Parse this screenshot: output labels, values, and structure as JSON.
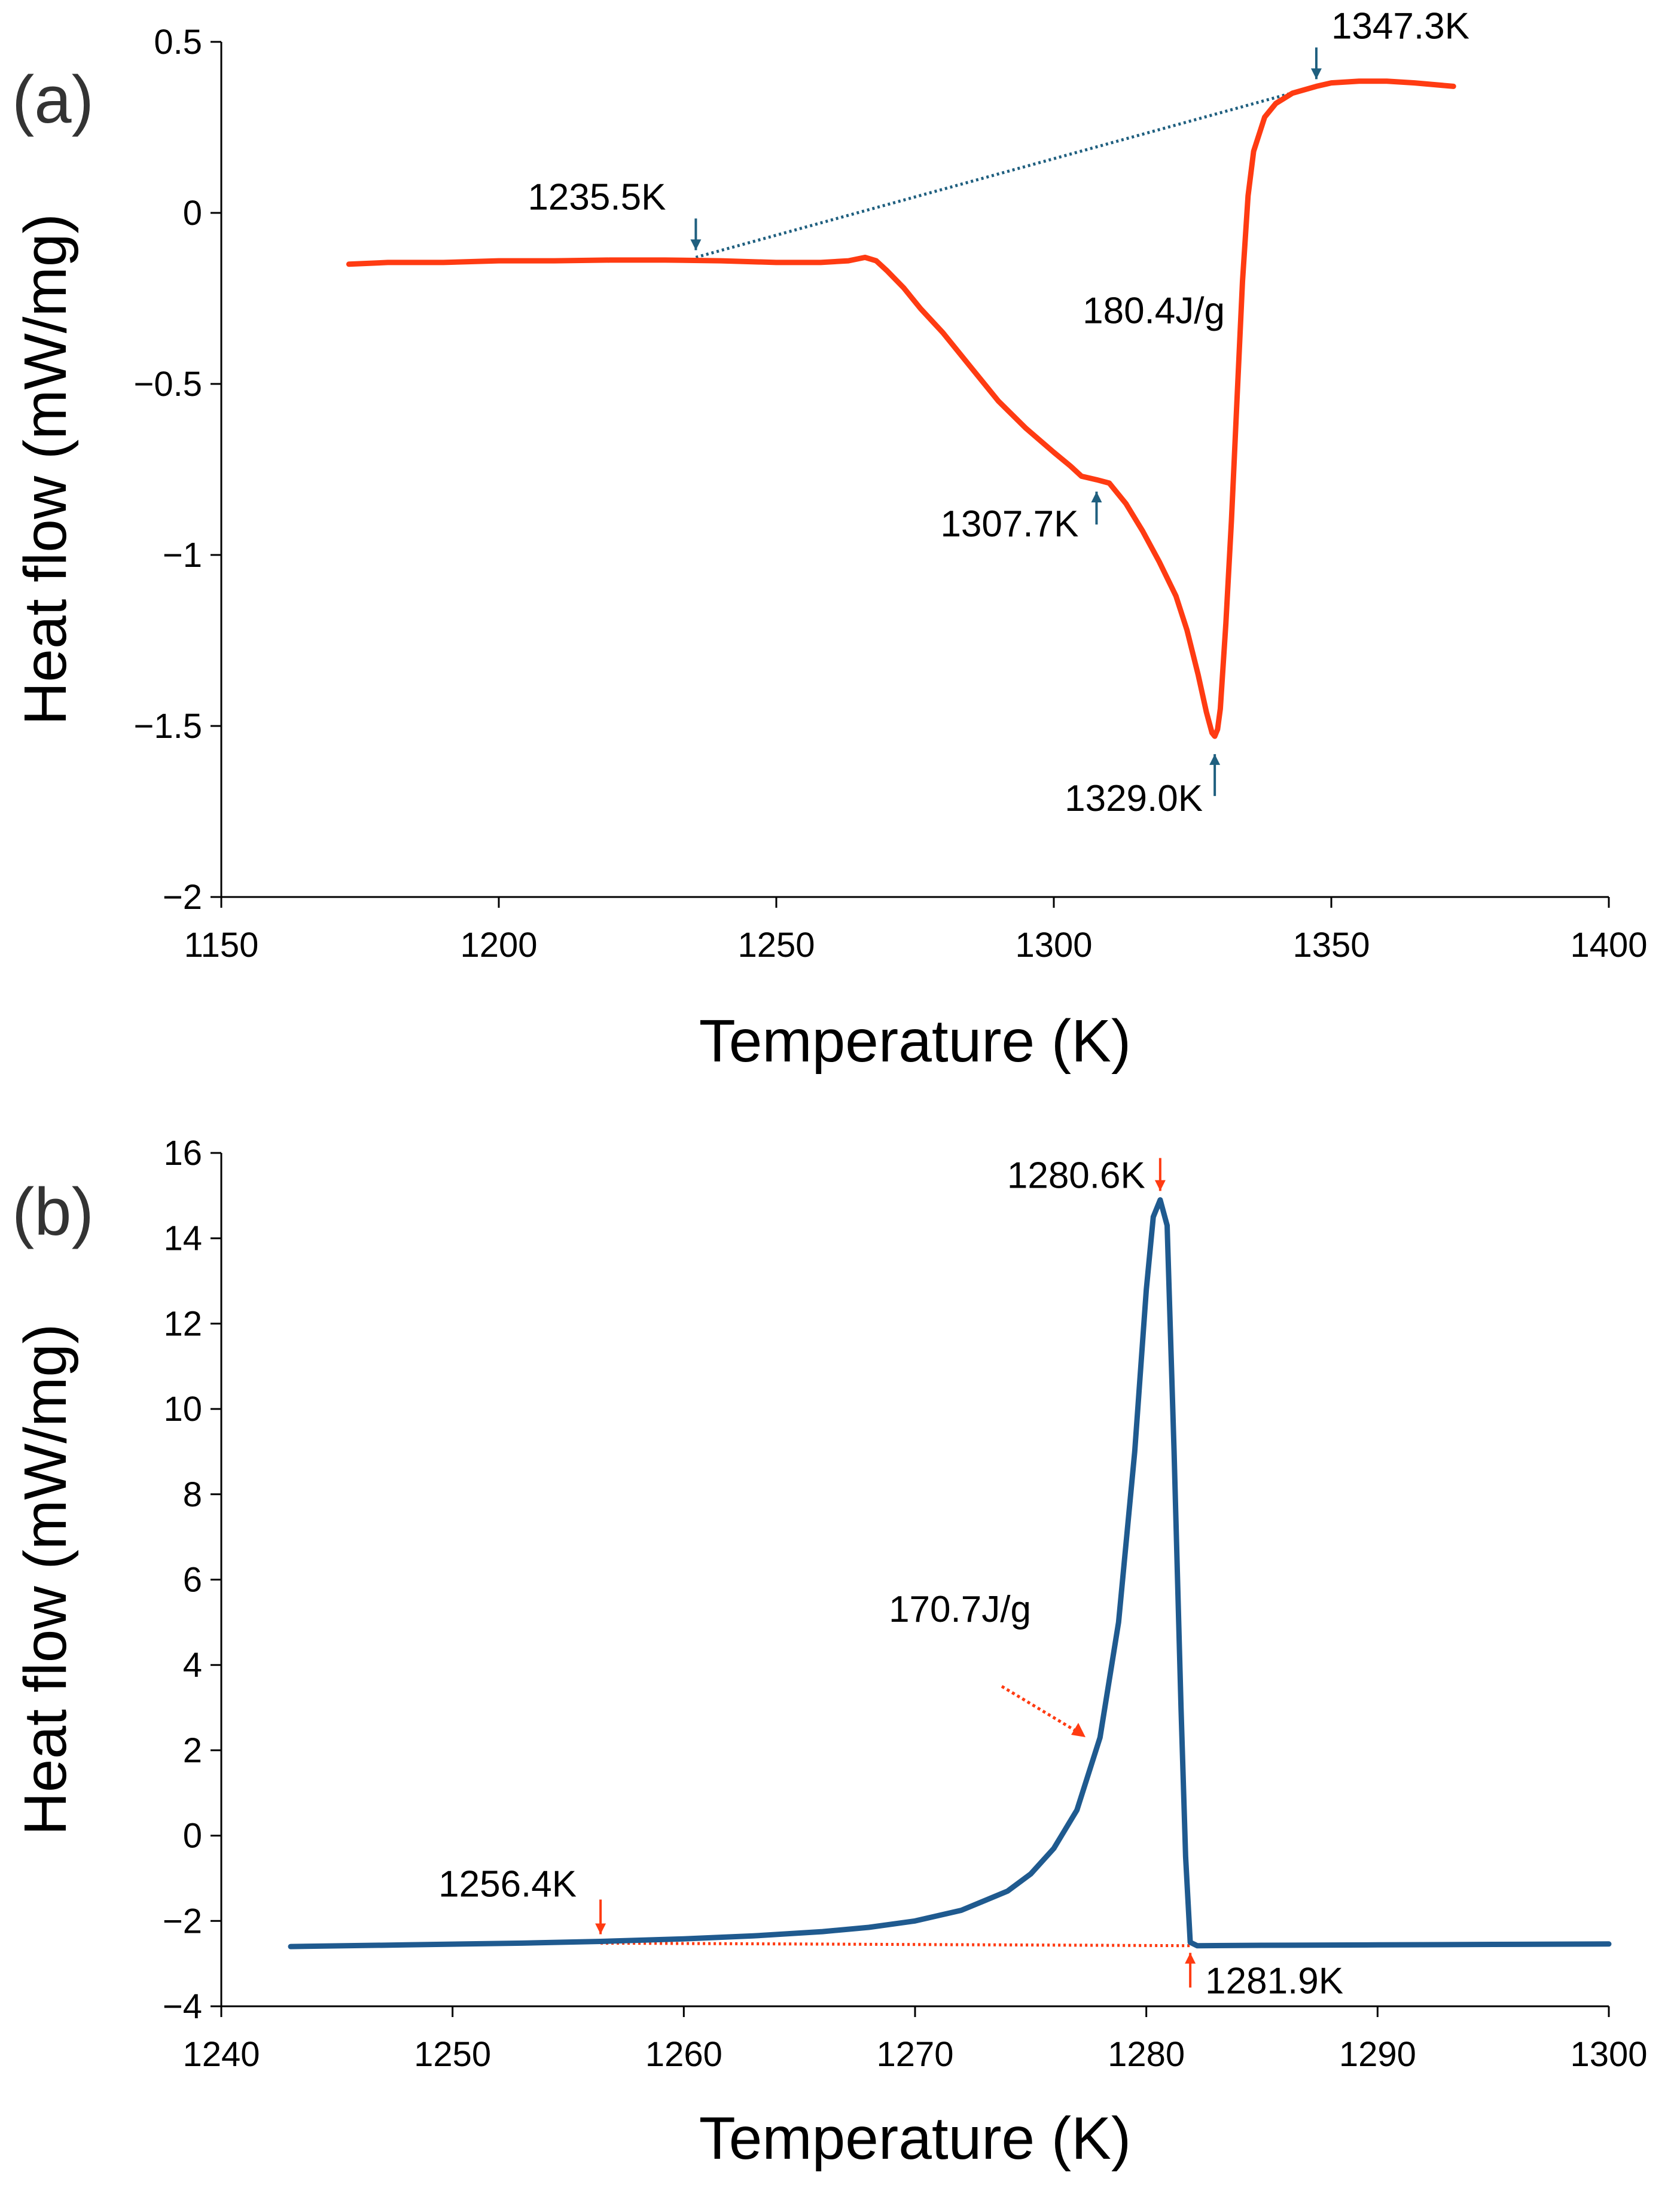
{
  "chart_data": [
    {
      "type": "line",
      "panel_label": "(a)",
      "xlabel": "Temperature (K)",
      "ylabel": "Heat flow (mW/mg)",
      "xlim": [
        1150,
        1400
      ],
      "ylim": [
        -2,
        0.5
      ],
      "xticks": [
        1150,
        1200,
        1250,
        1300,
        1350,
        1400
      ],
      "xtick_labels": [
        "1150",
        "1200",
        "1250",
        "1300",
        "1350",
        "1400"
      ],
      "yticks": [
        0.5,
        0,
        -0.5,
        -1,
        -1.5,
        -2
      ],
      "ytick_labels": [
        "0.5",
        "0",
        "−0.5",
        "−1",
        "−1.5",
        "−2"
      ],
      "grid": false,
      "series_color": "#ff3b12",
      "annotation_color": "#1f5f7f",
      "series": [
        {
          "x": [
            1173,
            1180,
            1190,
            1200,
            1210,
            1220,
            1230,
            1240,
            1250,
            1258,
            1263,
            1266,
            1268,
            1270,
            1273,
            1276,
            1280,
            1285,
            1290,
            1295,
            1300,
            1303,
            1305,
            1307.7,
            1310,
            1313,
            1316,
            1319,
            1322,
            1324,
            1326,
            1327.5,
            1328.5,
            1329,
            1329.5,
            1330,
            1331,
            1332,
            1333,
            1334,
            1335,
            1336,
            1338,
            1340,
            1343,
            1347.3,
            1350,
            1355,
            1360,
            1365,
            1372
          ],
          "y": [
            -0.15,
            -0.145,
            -0.145,
            -0.14,
            -0.14,
            -0.138,
            -0.138,
            -0.14,
            -0.145,
            -0.145,
            -0.14,
            -0.13,
            -0.14,
            -0.17,
            -0.22,
            -0.28,
            -0.35,
            -0.45,
            -0.55,
            -0.63,
            -0.7,
            -0.74,
            -0.77,
            -0.78,
            -0.79,
            -0.85,
            -0.93,
            -1.02,
            -1.12,
            -1.22,
            -1.35,
            -1.46,
            -1.52,
            -1.53,
            -1.51,
            -1.45,
            -1.2,
            -0.9,
            -0.55,
            -0.2,
            0.05,
            0.18,
            0.28,
            0.32,
            0.35,
            0.37,
            0.38,
            0.385,
            0.385,
            0.38,
            0.37
          ]
        }
      ],
      "baseline": {
        "x": [
          1235.5,
          1347.3
        ],
        "y": [
          -0.13,
          0.37
        ]
      },
      "annotations": [
        {
          "text": "1235.5K",
          "x": 1235.5,
          "y": -0.13,
          "arrow": "down"
        },
        {
          "text": "1347.3K",
          "x": 1347.3,
          "y": 0.37,
          "arrow": "down"
        },
        {
          "text": "180.4J/g",
          "x": 1318,
          "y": -0.27,
          "arrow": "none"
        },
        {
          "text": "1307.7K",
          "x": 1307.7,
          "y": -0.78,
          "arrow": "up"
        },
        {
          "text": "1329.0K",
          "x": 1329.0,
          "y": -1.53,
          "arrow": "up"
        }
      ]
    },
    {
      "type": "line",
      "panel_label": "(b)",
      "xlabel": "Temperature (K)",
      "ylabel": "Heat flow (mW/mg)",
      "xlim": [
        1240,
        1300
      ],
      "ylim": [
        -4,
        16
      ],
      "xticks": [
        1240,
        1250,
        1260,
        1270,
        1280,
        1290,
        1300
      ],
      "xtick_labels": [
        "1240",
        "1250",
        "1260",
        "1270",
        "1280",
        "1290",
        "1300"
      ],
      "yticks": [
        16,
        14,
        12,
        10,
        8,
        6,
        4,
        2,
        0,
        -2,
        -4
      ],
      "ytick_labels": [
        "16",
        "14",
        "12",
        "10",
        "8",
        "6",
        "4",
        "2",
        "0",
        "−2",
        "−4"
      ],
      "grid": false,
      "series_color": "#1f5a8f",
      "annotation_color": "#ff3b12",
      "series": [
        {
          "x": [
            1243,
            1248,
            1253,
            1256.4,
            1260,
            1263,
            1266,
            1268,
            1270,
            1272,
            1274,
            1275,
            1276,
            1277,
            1278,
            1278.8,
            1279.5,
            1280,
            1280.3,
            1280.6,
            1280.9,
            1281.2,
            1281.5,
            1281.7,
            1281.9,
            1282.2,
            1285,
            1290,
            1295,
            1300
          ],
          "y": [
            -2.6,
            -2.56,
            -2.52,
            -2.48,
            -2.42,
            -2.35,
            -2.25,
            -2.15,
            -2.0,
            -1.75,
            -1.3,
            -0.9,
            -0.3,
            0.6,
            2.3,
            5.0,
            9.0,
            12.8,
            14.5,
            14.9,
            14.3,
            9.0,
            3.0,
            -0.5,
            -2.5,
            -2.58,
            -2.57,
            -2.56,
            -2.55,
            -2.54
          ]
        }
      ],
      "baseline": {
        "x": [
          1256.4,
          1281.9
        ],
        "y": [
          -2.52,
          -2.58
        ]
      },
      "annotations": [
        {
          "text": "1280.6K",
          "x": 1280.6,
          "y": 14.9,
          "arrow": "down"
        },
        {
          "text": "170.7J/g",
          "x": 1276,
          "y": 0.3,
          "arrow": "diagonal"
        },
        {
          "text": "1256.4K",
          "x": 1256.4,
          "y": -2.48,
          "arrow": "down"
        },
        {
          "text": "1281.9K",
          "x": 1281.9,
          "y": -2.58,
          "arrow": "up"
        }
      ]
    }
  ]
}
